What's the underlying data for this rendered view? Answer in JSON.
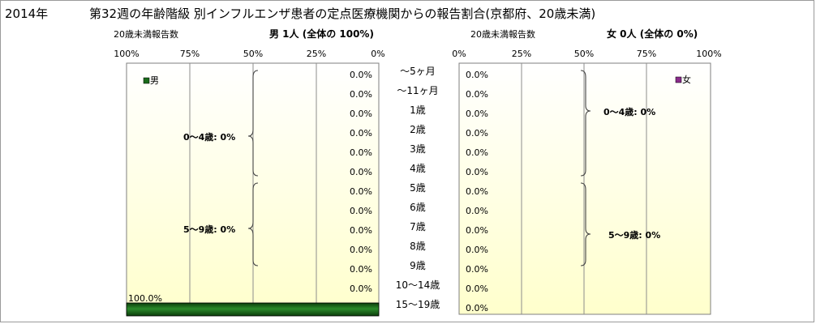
{
  "header": {
    "year": "2014年",
    "title": "第32週の年齢階級 別インフルエンザ患者の定点医療機関からの報告割合(京都府、20歳未満)"
  },
  "colors": {
    "male": "#1a6b1a",
    "female": "#8a2b8a"
  },
  "chart_data": [
    {
      "type": "bar",
      "orientation": "horizontal",
      "direction": "right-to-left",
      "name": "male",
      "subtitle_left": "20歳未満報告数",
      "subtitle_right": "男 1人 (全体の 100%)",
      "xlim": [
        0,
        100
      ],
      "xticks": [
        "100%",
        "75%",
        "50%",
        "25%",
        "0%"
      ],
      "legend": "男",
      "categories": [
        "～5ヶ月",
        "～11ヶ月",
        "1歳",
        "2歳",
        "3歳",
        "4歳",
        "5歳",
        "6歳",
        "7歳",
        "8歳",
        "9歳",
        "10～14歳",
        "15～19歳"
      ],
      "values": [
        0,
        0,
        0,
        0,
        0,
        0,
        0,
        0,
        0,
        0,
        0,
        0,
        100
      ],
      "value_labels": [
        "0.0%",
        "0.0%",
        "0.0%",
        "0.0%",
        "0.0%",
        "0.0%",
        "0.0%",
        "0.0%",
        "0.0%",
        "0.0%",
        "0.0%",
        "0.0%",
        "100.0%"
      ],
      "group_labels": [
        "0～4歳: 0%",
        "5～9歳: 0%"
      ]
    },
    {
      "type": "bar",
      "orientation": "horizontal",
      "direction": "left-to-right",
      "name": "female",
      "subtitle_left": "20歳未満報告数",
      "subtitle_right": "女 0人 (全体の 0%)",
      "xlim": [
        0,
        100
      ],
      "xticks": [
        "0%",
        "25%",
        "50%",
        "75%",
        "100%"
      ],
      "legend": "女",
      "categories": [
        "～5ヶ月",
        "～11ヶ月",
        "1歳",
        "2歳",
        "3歳",
        "4歳",
        "5歳",
        "6歳",
        "7歳",
        "8歳",
        "9歳",
        "10～14歳",
        "15～19歳"
      ],
      "values": [
        0,
        0,
        0,
        0,
        0,
        0,
        0,
        0,
        0,
        0,
        0,
        0,
        0
      ],
      "value_labels": [
        "0.0%",
        "0.0%",
        "0.0%",
        "0.0%",
        "0.0%",
        "0.0%",
        "0.0%",
        "0.0%",
        "0.0%",
        "0.0%",
        "0.0%",
        "0.0%",
        "0.0%"
      ],
      "group_labels": [
        "0～4歳: 0%",
        "5～9歳: 0%"
      ]
    }
  ]
}
